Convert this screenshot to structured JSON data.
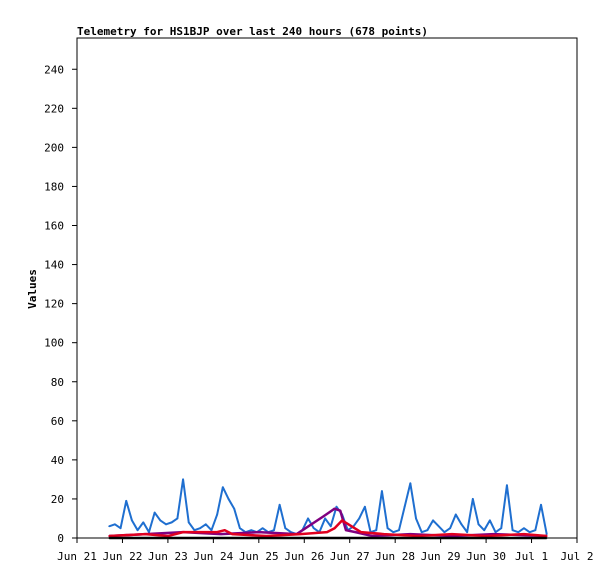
{
  "chart_data": {
    "type": "line",
    "title": "Telemetry for HS1BJP over last 240 hours (678 points)",
    "ylabel": "Values",
    "xlabel": "",
    "ylim": [
      0,
      256
    ],
    "xlim": [
      "Jun 21",
      "Jul 2"
    ],
    "x_ticks": [
      "Jun 21",
      "Jun 22",
      "Jun 23",
      "Jun 24",
      "Jun 25",
      "Jun 26",
      "Jun 27",
      "Jun 28",
      "Jun 29",
      "Jun 30",
      "Jul 1",
      "Jul 2"
    ],
    "y_ticks": [
      0,
      20,
      40,
      60,
      80,
      100,
      120,
      140,
      160,
      180,
      200,
      220,
      240
    ],
    "grid": false,
    "legend": "none",
    "series": [
      {
        "color": "#1f6fd0",
        "x": [
          "2024-06-21 17:00",
          "2024-06-21 20:00",
          "2024-06-21 23:00",
          "2024-06-22 02:00",
          "2024-06-22 05:00",
          "2024-06-22 08:00",
          "2024-06-22 11:00",
          "2024-06-22 14:00",
          "2024-06-22 17:00",
          "2024-06-22 20:00",
          "2024-06-22 23:00",
          "2024-06-23 02:00",
          "2024-06-23 05:00",
          "2024-06-23 08:00",
          "2024-06-23 11:00",
          "2024-06-23 14:00",
          "2024-06-23 17:00",
          "2024-06-23 20:00",
          "2024-06-23 23:00",
          "2024-06-24 02:00",
          "2024-06-24 05:00",
          "2024-06-24 08:00",
          "2024-06-24 11:00",
          "2024-06-24 14:00",
          "2024-06-24 17:00",
          "2024-06-24 20:00",
          "2024-06-24 23:00",
          "2024-06-25 02:00",
          "2024-06-25 05:00",
          "2024-06-25 08:00",
          "2024-06-25 11:00",
          "2024-06-25 14:00",
          "2024-06-25 17:00",
          "2024-06-25 20:00",
          "2024-06-25 23:00",
          "2024-06-26 02:00",
          "2024-06-26 05:00",
          "2024-06-26 08:00",
          "2024-06-26 11:00",
          "2024-06-26 14:00",
          "2024-06-26 17:00",
          "2024-06-26 20:00",
          "2024-06-26 23:00",
          "2024-06-27 02:00",
          "2024-06-27 05:00",
          "2024-06-27 08:00",
          "2024-06-27 11:00",
          "2024-06-27 14:00",
          "2024-06-27 17:00",
          "2024-06-27 20:00",
          "2024-06-27 23:00",
          "2024-06-28 02:00",
          "2024-06-28 05:00",
          "2024-06-28 08:00",
          "2024-06-28 11:00",
          "2024-06-28 14:00",
          "2024-06-28 17:00",
          "2024-06-28 20:00",
          "2024-06-28 23:00",
          "2024-06-29 02:00",
          "2024-06-29 05:00",
          "2024-06-29 08:00",
          "2024-06-29 11:00",
          "2024-06-29 14:00",
          "2024-06-29 17:00",
          "2024-06-29 20:00",
          "2024-06-29 23:00",
          "2024-06-30 02:00",
          "2024-06-30 05:00",
          "2024-06-30 08:00",
          "2024-06-30 11:00",
          "2024-06-30 14:00",
          "2024-06-30 17:00",
          "2024-06-30 20:00",
          "2024-06-30 23:00",
          "2024-07-01 02:00",
          "2024-07-01 05:00",
          "2024-07-01 08:00"
        ],
        "y": [
          6,
          7,
          5,
          19,
          9,
          4,
          8,
          3,
          13,
          9,
          7,
          8,
          10,
          30,
          8,
          4,
          5,
          7,
          4,
          12,
          26,
          20,
          15,
          5,
          3,
          4,
          3,
          5,
          3,
          4,
          17,
          5,
          3,
          2,
          4,
          10,
          5,
          3,
          10,
          6,
          16,
          12,
          4,
          6,
          10,
          16,
          3,
          4,
          24,
          5,
          3,
          4,
          16,
          28,
          10,
          3,
          4,
          9,
          6,
          3,
          5,
          12,
          7,
          3,
          20,
          7,
          4,
          9,
          3,
          5,
          27,
          4,
          3,
          5,
          3,
          4,
          17,
          2
        ]
      },
      {
        "color": "#800080",
        "x": [
          "2024-06-21 17:00",
          "2024-06-22 12:00",
          "2024-06-23 08:00",
          "2024-06-24 04:00",
          "2024-06-25 00:00",
          "2024-06-25 20:00",
          "2024-06-26 10:00",
          "2024-06-26 13:00",
          "2024-06-26 16:00",
          "2024-06-26 19:00",
          "2024-06-26 22:00",
          "2024-06-27 03:00",
          "2024-06-27 12:00",
          "2024-06-28 08:00",
          "2024-06-29 06:00",
          "2024-06-30 04:00",
          "2024-07-01 08:00"
        ],
        "y": [
          1,
          2,
          3,
          2,
          3,
          2,
          11,
          13,
          15,
          14,
          4,
          3,
          1,
          2,
          1,
          2,
          1
        ]
      },
      {
        "color": "#e00020",
        "x": [
          "2024-06-21 17:00",
          "2024-06-22 12:00",
          "2024-06-23 00:00",
          "2024-06-23 08:00",
          "2024-06-24 02:00",
          "2024-06-24 06:00",
          "2024-06-24 10:00",
          "2024-06-25 04:00",
          "2024-06-25 22:00",
          "2024-06-26 12:00",
          "2024-06-26 16:00",
          "2024-06-26 20:00",
          "2024-06-27 06:00",
          "2024-06-27 18:00",
          "2024-06-28 12:00",
          "2024-06-29 06:00",
          "2024-06-30 00:00",
          "2024-06-30 20:00",
          "2024-07-01 08:00"
        ],
        "y": [
          1,
          2,
          1,
          3,
          3,
          4,
          2,
          1,
          2,
          3,
          5,
          9,
          3,
          2,
          1,
          2,
          1,
          2,
          1
        ]
      },
      {
        "color": "#000000",
        "x": [
          "2024-06-21 17:00",
          "2024-07-01 08:00"
        ],
        "y": [
          0,
          0
        ]
      }
    ]
  }
}
